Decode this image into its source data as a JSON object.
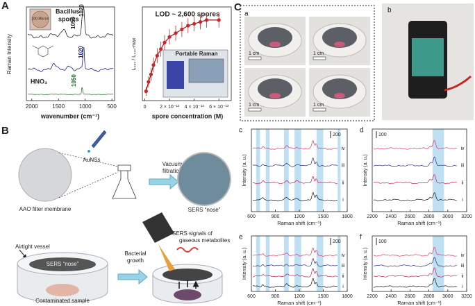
{
  "panel_a": {
    "label": "A",
    "spectra": {
      "inset_scale": "100 Micron",
      "sample": [
        "Bacillus",
        "spores"
      ],
      "peak_labels": [
        "1050",
        "1020"
      ],
      "reference": "HNO₃",
      "reference_peaks": [
        "1020",
        "1050"
      ],
      "ylabel": "Raman Intensity",
      "xlabel": "wavenumber (cm⁻¹)",
      "xlim": [
        2100,
        450
      ],
      "xticks": [
        2000,
        1500,
        1000,
        500
      ]
    },
    "curve": {
      "title": "LOD ~ 2,600 spores",
      "ylabel": "I₁₀₂₀ / I₁₀₂₀-max",
      "xlabel": "spore concentration (M)",
      "inset": "Portable Raman",
      "xlim": [
        -2e-14,
        7e-13
      ],
      "ylim": [
        0,
        1
      ],
      "xticks": [
        0,
        {
          "value": 2e-13,
          "label": "2 × 10⁻¹³"
        },
        {
          "value": 4e-13,
          "label": "4 × 10⁻¹³"
        },
        {
          "value": 6e-13,
          "label": "6 × 10⁻¹³"
        }
      ],
      "x": [
        1e-14,
        3e-14,
        5e-14,
        7e-14,
        1e-13,
        1.3e-13,
        1.6e-13,
        2e-13,
        2.5e-13,
        3e-13,
        3.5e-13,
        4e-13,
        4.5e-13,
        5e-13,
        6e-13
      ],
      "values": [
        0.1,
        0.2,
        0.28,
        0.38,
        0.48,
        0.55,
        0.62,
        0.68,
        0.72,
        0.76,
        0.8,
        0.82,
        0.84,
        0.86,
        0.86
      ],
      "errors": [
        0.05,
        0.06,
        0.07,
        0.08,
        0.08,
        0.08,
        0.08,
        0.08,
        0.08,
        0.08,
        0.08,
        0.08,
        0.08,
        0.08,
        0.08
      ]
    }
  },
  "panel_b": {
    "label": "B",
    "reagent": "AuNSs",
    "step1": [
      "Vacuum",
      "filtration"
    ],
    "membrane": "AAO filter membrane",
    "nose": "SERS “nose”",
    "vessel": "Airtight vessel",
    "nose_in_vessel": "SERS “nose”",
    "step2": [
      "Bacterial",
      "growth"
    ],
    "signal": [
      "SERS signals of",
      "gaseous metabolites"
    ],
    "sample": "Contaminated sample"
  },
  "panel_c": {
    "label": "C",
    "photos": {
      "label": "a",
      "scale_bars": [
        "1 cm",
        "1 cm",
        "1 cm",
        "1 cm"
      ]
    },
    "phone": {
      "label": "b"
    },
    "plots": [
      {
        "label": "c",
        "ylabel": "Intensity (a. u.)",
        "xlabel": "Raman shift (cm⁻¹)",
        "xlim": [
          600,
          1800
        ],
        "xticks": [
          600,
          900,
          1200,
          1500,
          1800
        ],
        "scale": "200",
        "traces": [
          "iv",
          "iii",
          "ii",
          "i"
        ]
      },
      {
        "label": "d",
        "ylabel": "Intensity (a. u.)",
        "xlabel": "Raman shift (cm⁻¹)",
        "xlim": [
          2200,
          3200
        ],
        "xticks": [
          2200,
          2400,
          2600,
          2800,
          3000,
          3200
        ],
        "scale": "100",
        "traces": [
          "iv",
          "iii",
          "ii",
          "i"
        ]
      },
      {
        "label": "e",
        "ylabel": "Intensity (a. u.)",
        "xlabel": "Raman shift (cm⁻¹)",
        "xlim": [
          600,
          1800
        ],
        "xticks": [
          600,
          900,
          1200,
          1500,
          1800
        ],
        "scale": "200",
        "traces": [
          "iv",
          "iii",
          "ii",
          "i"
        ]
      },
      {
        "label": "f",
        "ylabel": "Intensity (a. u.)",
        "xlabel": "Raman shift (cm⁻¹)",
        "xlim": [
          2200,
          3200
        ],
        "xticks": [
          2200,
          2400,
          2600,
          2800,
          3000,
          3200
        ],
        "scale": "100",
        "traces": [
          "iv",
          "iii",
          "ii",
          "i"
        ]
      }
    ]
  }
}
